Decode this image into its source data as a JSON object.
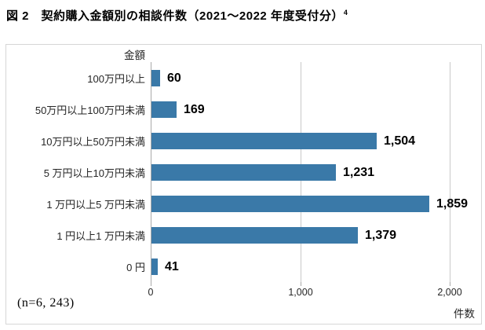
{
  "figure": {
    "title": "図 2　契約購入金額別の相談件数（2021～2022 年度受付分）",
    "title_superscript": "4"
  },
  "chart_data": {
    "type": "bar",
    "orientation": "horizontal",
    "title": "図 2　契約購入金額別の相談件数（2021～2022 年度受付分）4",
    "category_axis_title": "金額",
    "value_axis_label": "件数",
    "categories": [
      "100万円以上",
      "50万円以上100万円未満",
      "10万円以上50万円未満",
      "5 万円以上10万円未満",
      "1 万円以上5 万円未満",
      "1 円以上1 万円未満",
      "0 円"
    ],
    "values": [
      60,
      169,
      1504,
      1231,
      1859,
      1379,
      41
    ],
    "value_labels": [
      "60",
      "169",
      "1,504",
      "1,231",
      "1,859",
      "1,379",
      "41"
    ],
    "xlim": [
      0,
      2000
    ],
    "xticks": [
      0,
      1000,
      2000
    ],
    "xtick_labels": [
      "0",
      "1,000",
      "2,000"
    ],
    "gridlines": "vertical-major",
    "legend_position": "none",
    "bar_color": "#3A79A8",
    "note": "(n=6, 243)"
  }
}
